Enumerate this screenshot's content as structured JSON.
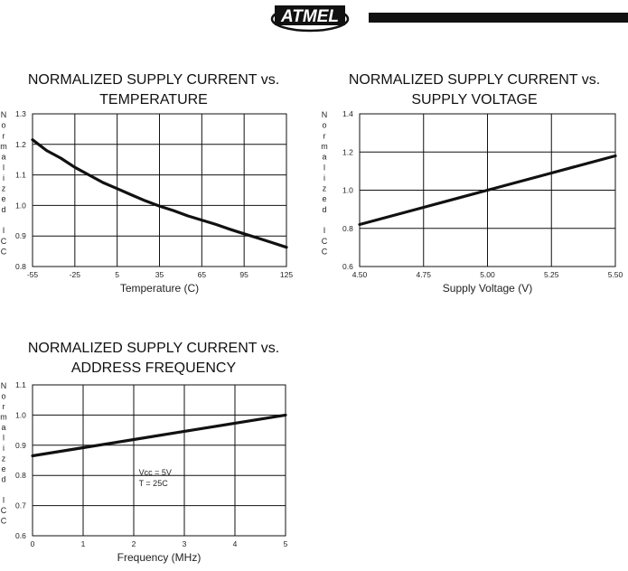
{
  "header": {
    "logo_text": "ATMEL",
    "accent": "#111111"
  },
  "chart_data": [
    {
      "type": "line",
      "title": "NORMALIZED SUPPLY CURRENT vs. TEMPERATURE",
      "title_lines": [
        "NORMALIZED SUPPLY CURRENT vs.",
        "TEMPERATURE"
      ],
      "xlabel": "Temperature (C)",
      "ylabel": "Normalized ICC",
      "xticks": [
        "-55",
        "-25",
        "5",
        "35",
        "65",
        "95",
        "125"
      ],
      "yticks": [
        "1.3",
        "1.2",
        "1.1",
        "1.0",
        "0.9",
        "0.8"
      ],
      "xlim": [
        -55,
        125
      ],
      "ylim": [
        0.8,
        1.3
      ],
      "grid": true,
      "annotations": [],
      "series": [
        {
          "x": [
            -55,
            -45,
            -35,
            -25,
            -15,
            -5,
            5,
            15,
            25,
            35,
            45,
            55,
            65,
            75,
            85,
            95,
            105,
            115,
            125
          ],
          "values": [
            1.215,
            1.18,
            1.155,
            1.125,
            1.1,
            1.075,
            1.055,
            1.035,
            1.015,
            0.998,
            0.983,
            0.966,
            0.952,
            0.938,
            0.922,
            0.907,
            0.893,
            0.878,
            0.863
          ]
        }
      ]
    },
    {
      "type": "line",
      "title": "NORMALIZED SUPPLY CURRENT vs. SUPPLY VOLTAGE",
      "title_lines": [
        "NORMALIZED SUPPLY CURRENT vs.",
        "SUPPLY VOLTAGE"
      ],
      "xlabel": "Supply Voltage (V)",
      "ylabel": "Normalized ICC",
      "xticks": [
        "4.50",
        "4.75",
        "5.00",
        "5.25",
        "5.50"
      ],
      "yticks": [
        "1.4",
        "1.2",
        "1.0",
        "0.8",
        "0.6"
      ],
      "xlim": [
        4.5,
        5.5
      ],
      "ylim": [
        0.6,
        1.4
      ],
      "grid": true,
      "annotations": [],
      "series": [
        {
          "x": [
            4.5,
            4.75,
            5.0,
            5.25,
            5.5
          ],
          "values": [
            0.82,
            0.91,
            1.0,
            1.09,
            1.18
          ]
        }
      ]
    },
    {
      "type": "line",
      "title": "NORMALIZED SUPPLY CURRENT vs. ADDRESS FREQUENCY",
      "title_lines": [
        "NORMALIZED SUPPLY CURRENT vs.",
        "ADDRESS FREQUENCY"
      ],
      "xlabel": "Frequency (MHz)",
      "ylabel": "Normalized ICC",
      "xticks": [
        "0",
        "1",
        "2",
        "3",
        "4",
        "5"
      ],
      "yticks": [
        "1.1",
        "1.0",
        "0.9",
        "0.8",
        "0.7",
        "0.6"
      ],
      "xlim": [
        0,
        5
      ],
      "ylim": [
        0.6,
        1.1
      ],
      "grid": true,
      "annotations": [
        "Vcc = 5V",
        "T = 25C"
      ],
      "series": [
        {
          "x": [
            0,
            1,
            2,
            3,
            4,
            5
          ],
          "values": [
            0.865,
            0.892,
            0.919,
            0.946,
            0.973,
            1.0
          ]
        }
      ]
    }
  ]
}
